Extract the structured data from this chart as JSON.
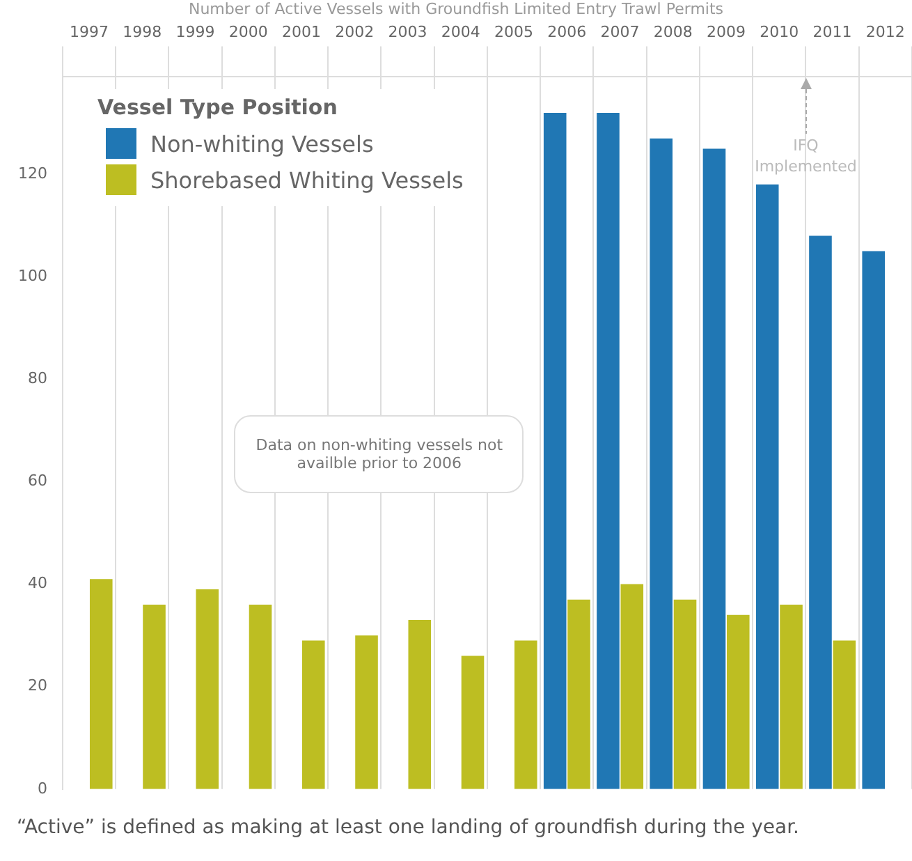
{
  "chart_data": {
    "type": "bar",
    "title": "Number of Active Vessels with Groundfish Limited Entry Trawl Permits",
    "categories": [
      "1997",
      "1998",
      "1999",
      "2000",
      "2001",
      "2002",
      "2003",
      "2004",
      "2005",
      "2006",
      "2007",
      "2008",
      "2009",
      "2010",
      "2011",
      "2012"
    ],
    "series": [
      {
        "name": "Non-whiting Vessels",
        "color": "#2077b4",
        "values": [
          null,
          null,
          null,
          null,
          null,
          null,
          null,
          null,
          null,
          132,
          132,
          127,
          125,
          118,
          108,
          105
        ]
      },
      {
        "name": "Shorebased Whiting Vessels",
        "color": "#bdbe22",
        "values": [
          41,
          36,
          39,
          36,
          29,
          30,
          33,
          26,
          29,
          37,
          40,
          37,
          34,
          36,
          29,
          null
        ]
      }
    ],
    "legend_title": "Vessel Type Position",
    "legend": "top left",
    "ylim": [
      0,
      139
    ],
    "yticks": [
      0,
      20,
      40,
      60,
      80,
      100,
      120
    ],
    "grid": "x",
    "annotations": [
      "Data on non-whiting vessels not availble prior to 2006",
      "IFQ Implemented",
      "“Active” is defined as making at least one landing of groundfish during the year."
    ]
  }
}
